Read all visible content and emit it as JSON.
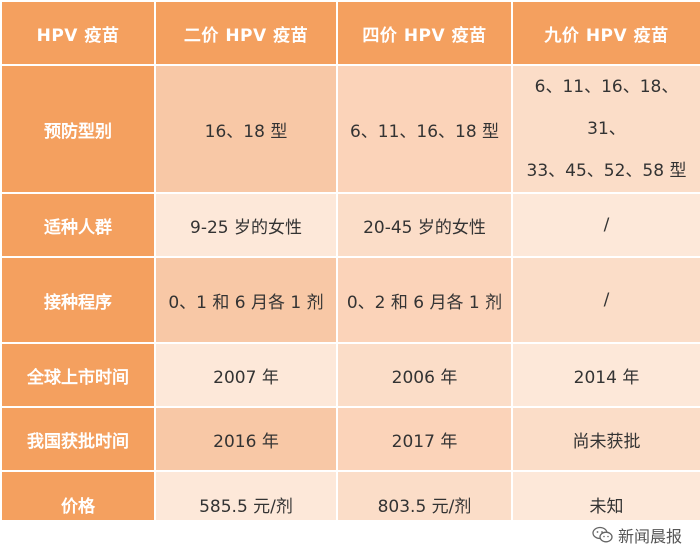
{
  "table": {
    "headers": [
      "HPV 疫苗",
      "二价 HPV 疫苗",
      "四价 HPV 疫苗",
      "九价 HPV 疫苗"
    ],
    "rows": [
      {
        "label": "预防型别",
        "values": [
          "16、18 型",
          "6、11、16、18 型"
        ],
        "value_multi": [
          "6、11、16、18、31、",
          "33、45、52、58 型"
        ]
      },
      {
        "label": "适种人群",
        "values": [
          "9-25 岁的女性",
          "20-45 岁的女性",
          "/"
        ]
      },
      {
        "label": "接种程序",
        "values": [
          "0、1 和 6 月各 1 剂",
          "0、2 和 6 月各 1 剂",
          "/"
        ]
      },
      {
        "label": "全球上市时间",
        "values": [
          "2007 年",
          "2006 年",
          "2014 年"
        ]
      },
      {
        "label": "我国获批时间",
        "values": [
          "2016 年",
          "2017 年",
          "尚未获批"
        ]
      },
      {
        "label": "价格",
        "values": [
          "585.5 元/剂",
          "803.5 元/剂",
          "未知"
        ]
      }
    ]
  },
  "watermark": {
    "text": "新闻晨报",
    "icon": "wechat-icon"
  },
  "colors": {
    "header_bg": "#f4a05f",
    "header_text": "#ffffff",
    "cell_text": "#333333"
  }
}
